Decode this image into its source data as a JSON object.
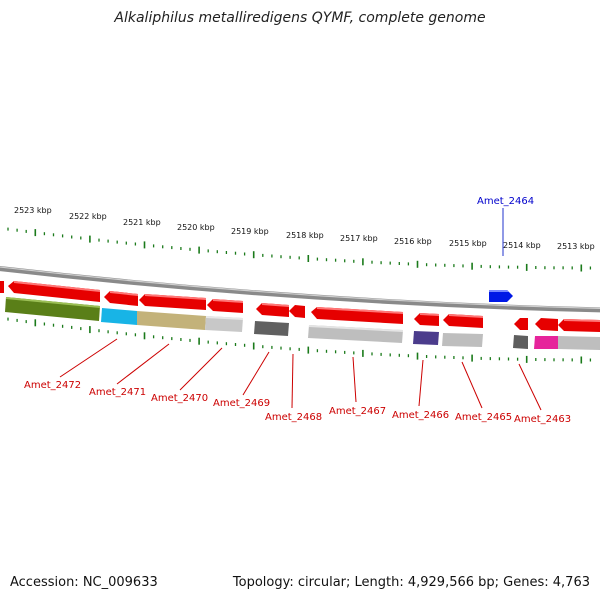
{
  "title": "Alkaliphilus metalliredigens QYMF, complete genome",
  "footer": {
    "accession": "Accession: NC_009633",
    "stats": "Topology: circular; Length: 4,929,566 bp; Genes: 4,763"
  },
  "scale": {
    "unit": "kbp",
    "ticks": [
      "2523 kbp",
      "2522 kbp",
      "2521 kbp",
      "2520 kbp",
      "2519 kbp",
      "2518 kbp",
      "2517 kbp",
      "2516 kbp",
      "2515 kbp",
      "2514 kbp",
      "2513 kbp"
    ]
  },
  "genes": [
    {
      "id": "Amet_2464",
      "strand": "forward",
      "color": "#0018e6"
    },
    {
      "id": "Amet_2472",
      "strand": "reverse",
      "color": "#e60000"
    },
    {
      "id": "Amet_2471",
      "strand": "reverse",
      "color": "#e60000"
    },
    {
      "id": "Amet_2470",
      "strand": "reverse",
      "color": "#e60000"
    },
    {
      "id": "Amet_2469",
      "strand": "reverse",
      "color": "#e60000"
    },
    {
      "id": "Amet_2468",
      "strand": "reverse",
      "color": "#e60000"
    },
    {
      "id": "Amet_2467",
      "strand": "reverse",
      "color": "#e60000"
    },
    {
      "id": "Amet_2466",
      "strand": "reverse",
      "color": "#e60000"
    },
    {
      "id": "Amet_2465",
      "strand": "reverse",
      "color": "#e60000"
    },
    {
      "id": "Amet_2463",
      "strand": "reverse",
      "color": "#e60000"
    }
  ],
  "colors": {
    "forward_label": "#0000cc",
    "reverse_label": "#cc0000",
    "scale_ticks": "#1a7a1a",
    "backbone": "#888888"
  }
}
